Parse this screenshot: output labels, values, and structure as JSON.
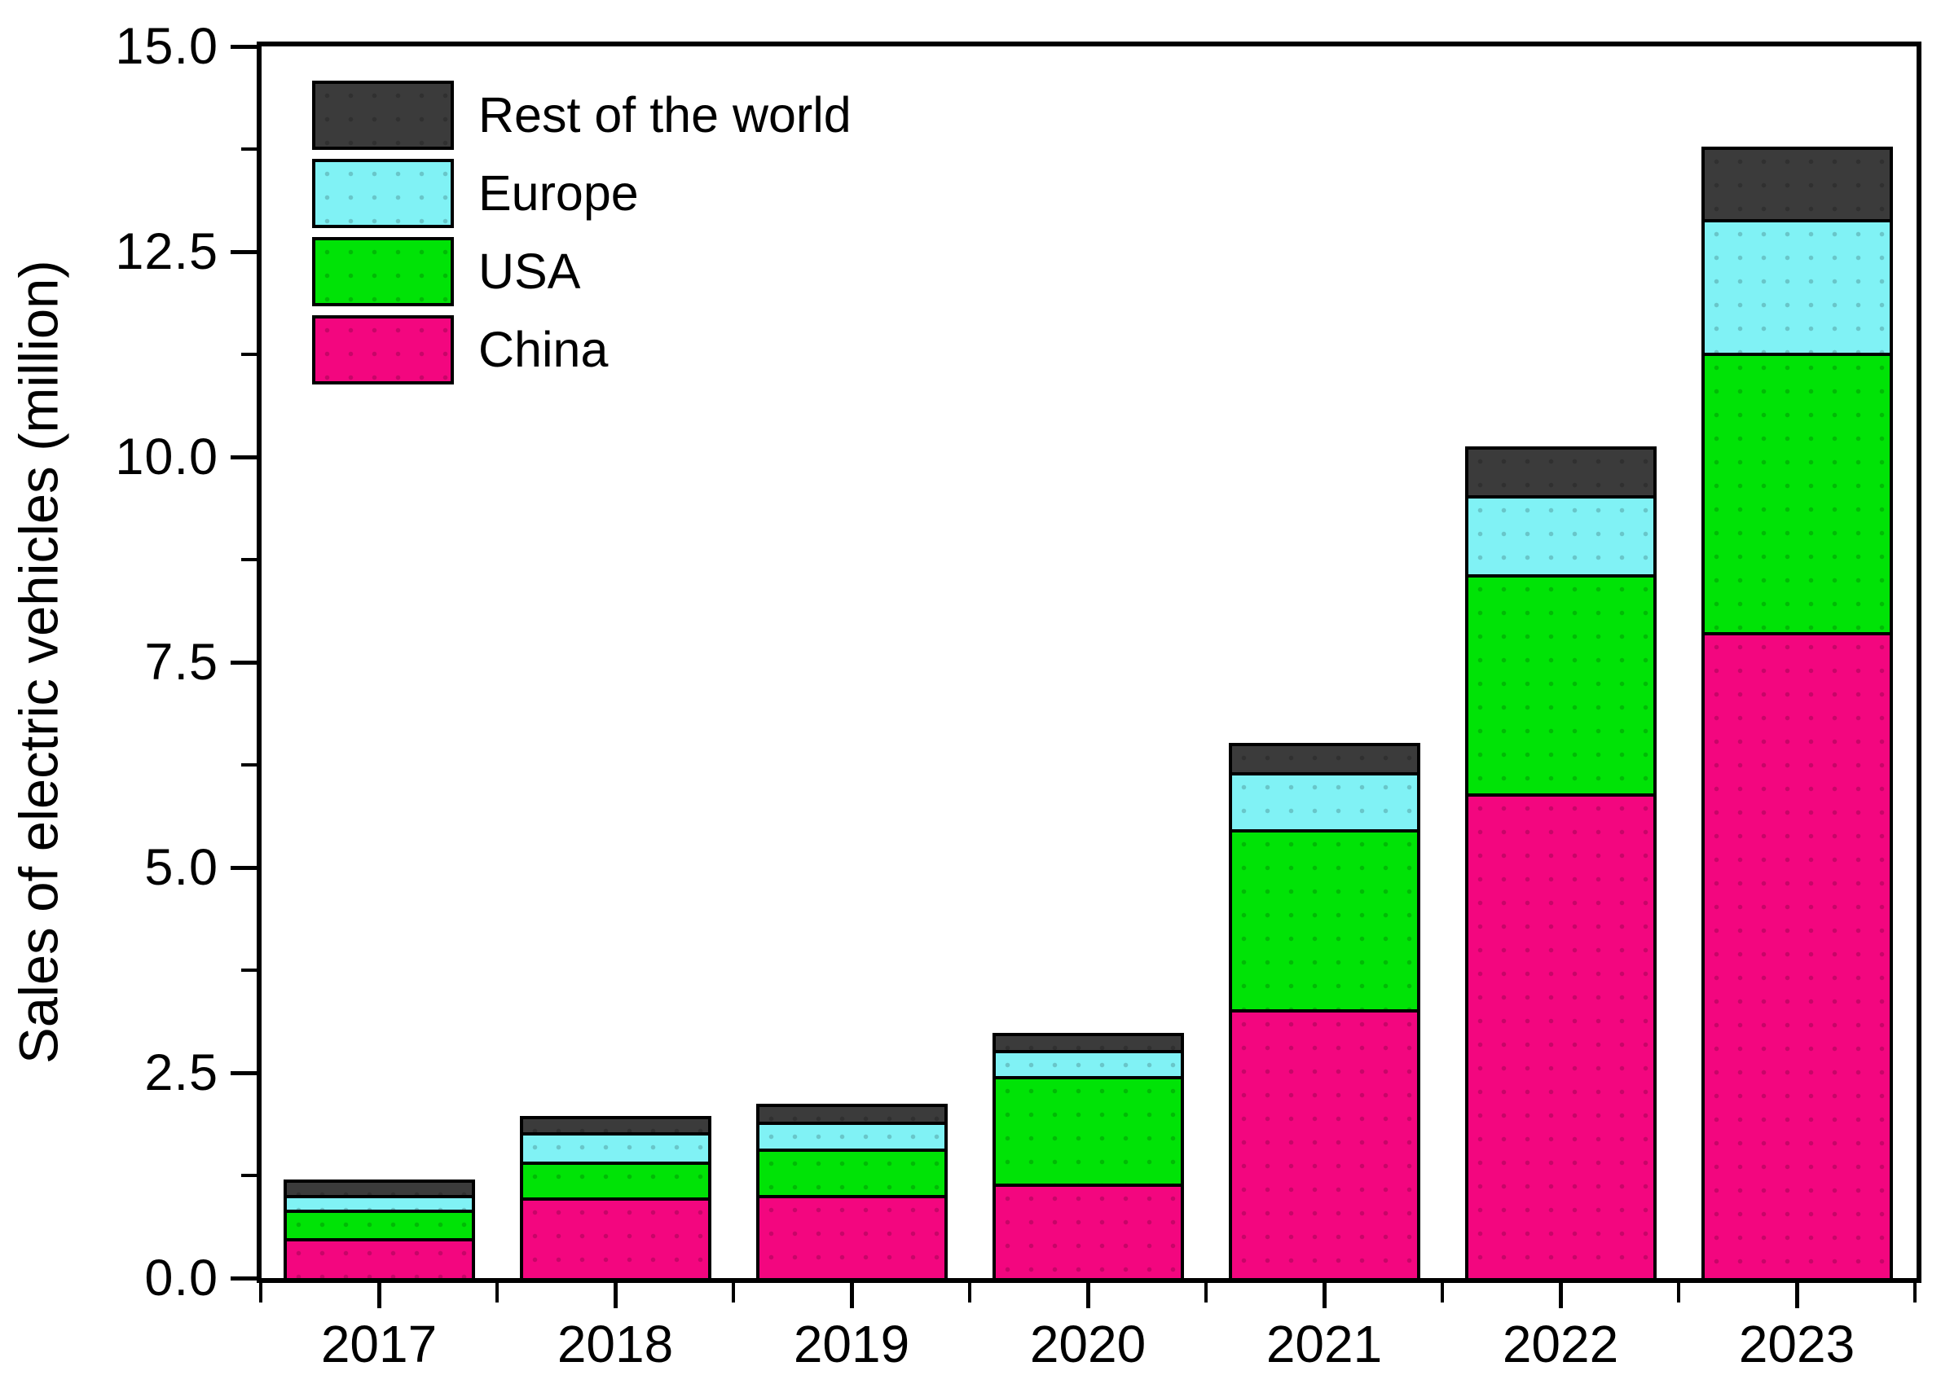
{
  "chart_data": {
    "type": "bar",
    "stacked": true,
    "title": "",
    "ylabel": "Sales of electric vehicles (million)",
    "xlabel": "",
    "categories": [
      "2017",
      "2018",
      "2019",
      "2020",
      "2021",
      "2022",
      "2023"
    ],
    "series": [
      {
        "name": "China",
        "color": "#F3067F",
        "values": [
          0.52,
          1.03,
          1.05,
          1.17,
          3.31,
          5.96,
          7.92
        ]
      },
      {
        "name": "USA",
        "color": "#00E306",
        "values": [
          0.35,
          0.43,
          0.57,
          1.34,
          2.21,
          2.67,
          3.4
        ]
      },
      {
        "name": "Europe",
        "color": "#80F2F5",
        "values": [
          0.16,
          0.34,
          0.31,
          0.3,
          0.67,
          0.93,
          1.61
        ]
      },
      {
        "name": "Rest of the world",
        "color": "#3B3B3B",
        "values": [
          0.17,
          0.17,
          0.19,
          0.18,
          0.33,
          0.57,
          0.85
        ]
      }
    ],
    "totals": [
      1.2,
      1.97,
      2.12,
      2.99,
      6.52,
      10.13,
      13.78
    ],
    "ylim": [
      0,
      15
    ],
    "y_major_step": 2.5,
    "y_minor_step": 1.25,
    "y_tick_labels": [
      "0.0",
      "2.5",
      "5.0",
      "7.5",
      "10.0",
      "12.5",
      "15.0"
    ],
    "grid": false,
    "legend_position": "top-left",
    "legend_order": [
      "Rest of the world",
      "Europe",
      "USA",
      "China"
    ],
    "axis_color": "#000000",
    "background_color": "#FFFFFF"
  }
}
